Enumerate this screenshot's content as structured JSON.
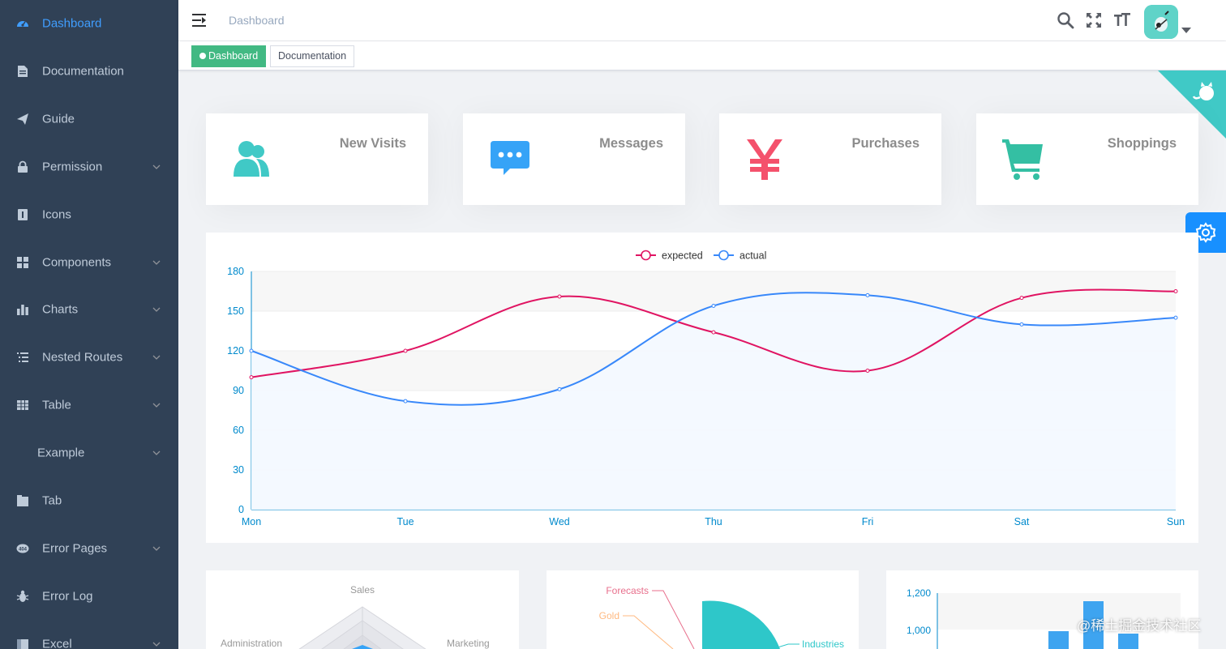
{
  "sidebar": {
    "items": [
      {
        "label": "Dashboard",
        "icon": "dashboard-icon",
        "active": true,
        "submenu": false
      },
      {
        "label": "Documentation",
        "icon": "documentation-icon",
        "submenu": false
      },
      {
        "label": "Guide",
        "icon": "guide-icon",
        "submenu": false
      },
      {
        "label": "Permission",
        "icon": "lock-icon",
        "submenu": true
      },
      {
        "label": "Icons",
        "icon": "icons-icon",
        "submenu": false
      },
      {
        "label": "Components",
        "icon": "component-icon",
        "submenu": true
      },
      {
        "label": "Charts",
        "icon": "chart-icon",
        "submenu": true
      },
      {
        "label": "Nested Routes",
        "icon": "nested-icon",
        "submenu": true
      },
      {
        "label": "Table",
        "icon": "table-icon",
        "submenu": true
      },
      {
        "label": "Example",
        "icon": "",
        "submenu": true
      },
      {
        "label": "Tab",
        "icon": "tab-icon",
        "submenu": false
      },
      {
        "label": "Error Pages",
        "icon": "404-icon",
        "submenu": true
      },
      {
        "label": "Error Log",
        "icon": "bug-icon",
        "submenu": false
      },
      {
        "label": "Excel",
        "icon": "excel-icon",
        "submenu": true
      }
    ]
  },
  "navbar": {
    "breadcrumb": "Dashboard"
  },
  "tags": [
    {
      "label": "Dashboard",
      "active": true
    },
    {
      "label": "Documentation",
      "active": false
    }
  ],
  "panels": [
    {
      "label": "New Visits",
      "icon": "peoples-icon",
      "color": "#40c9c6"
    },
    {
      "label": "Messages",
      "icon": "message-icon",
      "color": "#36a3f7"
    },
    {
      "label": "Purchases",
      "icon": "money-icon",
      "color": "#f4516c"
    },
    {
      "label": "Shoppings",
      "icon": "shopping-icon",
      "color": "#34bfa3"
    }
  ],
  "colors": {
    "sidebar_bg": "#304156",
    "sidebar_text": "#bfcbd9",
    "active": "#409eff",
    "tag_active": "#42b983",
    "expected": "#e01462",
    "actual": "#3888fa",
    "settings": "#1890ff"
  },
  "chart_data": [
    {
      "type": "line",
      "categories": [
        "Mon",
        "Tue",
        "Wed",
        "Thu",
        "Fri",
        "Sat",
        "Sun"
      ],
      "series": [
        {
          "name": "expected",
          "values": [
            100,
            120,
            161,
            134,
            105,
            160,
            165
          ],
          "color": "#e01462"
        },
        {
          "name": "actual",
          "values": [
            120,
            82,
            91,
            154,
            162,
            140,
            145
          ],
          "color": "#3888fa"
        }
      ],
      "yticks": [
        0,
        30,
        60,
        90,
        120,
        150,
        180
      ],
      "ylim": [
        0,
        180
      ],
      "legend": "top-center",
      "grid": true
    },
    {
      "type": "radar",
      "indicators": [
        "Sales",
        "Administration",
        "Marketing"
      ]
    },
    {
      "type": "pie",
      "labels": [
        "Forecasts",
        "Gold",
        "Industries"
      ]
    },
    {
      "type": "bar",
      "yticks": [
        "1,200",
        "1,000"
      ]
    }
  ],
  "watermark": "@稀土掘金技术社区"
}
